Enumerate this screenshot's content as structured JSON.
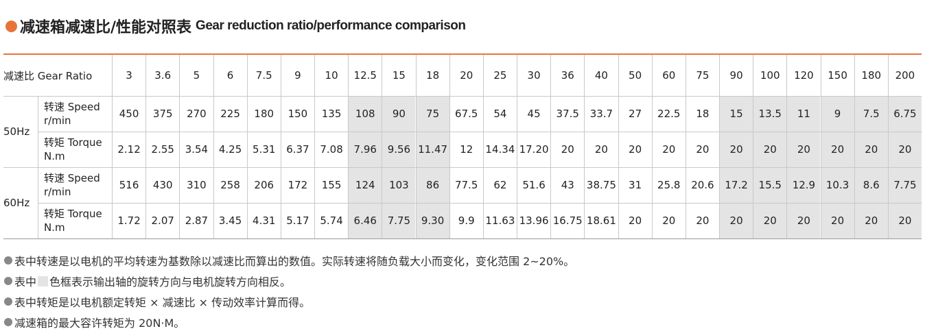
{
  "title_cn": "减速箱减速比/性能对照表",
  "title_en": "Gear reduction ratio/performance comparison",
  "table": {
    "header_label": "减速比 Gear Ratio",
    "ratios": [
      "3",
      "3.6",
      "5",
      "6",
      "7.5",
      "9",
      "10",
      "12.5",
      "15",
      "18",
      "20",
      "25",
      "30",
      "36",
      "40",
      "50",
      "60",
      "75",
      "90",
      "100",
      "120",
      "150",
      "180",
      "200"
    ],
    "shaded_columns": [
      7,
      8,
      9,
      18,
      19,
      20,
      21,
      22,
      23
    ],
    "shade_color": "#e4e4e4",
    "accent_color": "#e8733a",
    "groups": [
      {
        "freq": "50Hz",
        "rows": [
          {
            "label": "转速 Speed",
            "unit": "r/min",
            "values": [
              "450",
              "375",
              "270",
              "225",
              "180",
              "150",
              "135",
              "108",
              "90",
              "75",
              "67.5",
              "54",
              "45",
              "37.5",
              "33.7",
              "27",
              "22.5",
              "18",
              "15",
              "13.5",
              "11",
              "9",
              "7.5",
              "6.75"
            ]
          },
          {
            "label": "转矩 Torque",
            "unit": "N.m",
            "values": [
              "2.12",
              "2.55",
              "3.54",
              "4.25",
              "5.31",
              "6.37",
              "7.08",
              "7.96",
              "9.56",
              "11.47",
              "12",
              "14.34",
              "17.20",
              "20",
              "20",
              "20",
              "20",
              "20",
              "20",
              "20",
              "20",
              "20",
              "20",
              "20"
            ]
          }
        ]
      },
      {
        "freq": "60Hz",
        "rows": [
          {
            "label": "转速 Speed",
            "unit": "r/min",
            "values": [
              "516",
              "430",
              "310",
              "258",
              "206",
              "172",
              "155",
              "124",
              "103",
              "86",
              "77.5",
              "62",
              "51.6",
              "43",
              "38.75",
              "31",
              "25.8",
              "20.6",
              "17.2",
              "15.5",
              "12.9",
              "10.3",
              "8.6",
              "7.75"
            ]
          },
          {
            "label": "转矩 Torque",
            "unit": "N.m",
            "values": [
              "1.72",
              "2.07",
              "2.87",
              "3.45",
              "4.31",
              "5.17",
              "5.74",
              "6.46",
              "7.75",
              "9.30",
              "9.9",
              "11.63",
              "13.96",
              "16.75",
              "18.61",
              "20",
              "20",
              "20",
              "20",
              "20",
              "20",
              "20",
              "20",
              "20"
            ]
          }
        ]
      }
    ]
  },
  "notes": [
    [
      "表中转速是以电机的平均转速为基数除以减速比而算出的数值。实际转速将随负载大小而变化，变化范围 2~20%。"
    ],
    [
      "表中",
      "色框表示输出轴的旋转方向与电机旋转方向相反。"
    ],
    [
      "表中转矩是以电机额定转矩 × 减速比 × 传动效率计算而得。"
    ],
    [
      "减速箱的最大容许转矩为 20N·M。"
    ]
  ]
}
